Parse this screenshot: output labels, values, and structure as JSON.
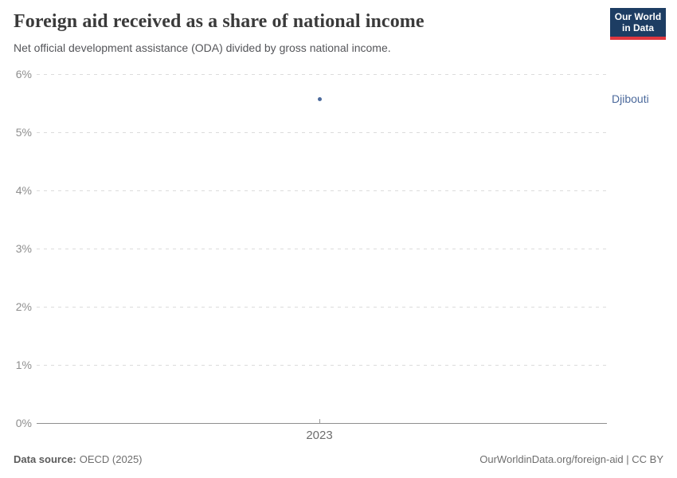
{
  "header": {
    "title": "Foreign aid received as a share of national income",
    "subtitle": "Net official development assistance (ODA) divided by gross national income."
  },
  "logo": {
    "line1": "Our World",
    "line2": "in Data",
    "bg_color": "#1d3d63",
    "accent_color": "#e0373f"
  },
  "chart_data": {
    "type": "scatter",
    "title": "Foreign aid received as a share of national income",
    "subtitle": "Net official development assistance (ODA) divided by gross national income.",
    "x": [
      2023
    ],
    "series": [
      {
        "name": "Djibouti",
        "values": [
          5.57
        ],
        "color": "#4c6a9c"
      }
    ],
    "xlabel": "",
    "ylabel": "",
    "ylim": [
      0,
      6
    ],
    "yticks": [
      0,
      1,
      2,
      3,
      4,
      5,
      6
    ],
    "ytick_labels": [
      "0%",
      "1%",
      "2%",
      "3%",
      "4%",
      "5%",
      "6%"
    ],
    "xtick_labels": [
      "2023"
    ],
    "grid": "horizontal-dashed",
    "gridline_color": "#dcdcdc",
    "axis_line_color": "#8f8f8f",
    "legend_position": "right-entity-label"
  },
  "footer": {
    "source_label": "Data source:",
    "source_value": "OECD (2025)",
    "link": "OurWorldinData.org/foreign-aid | CC BY"
  }
}
